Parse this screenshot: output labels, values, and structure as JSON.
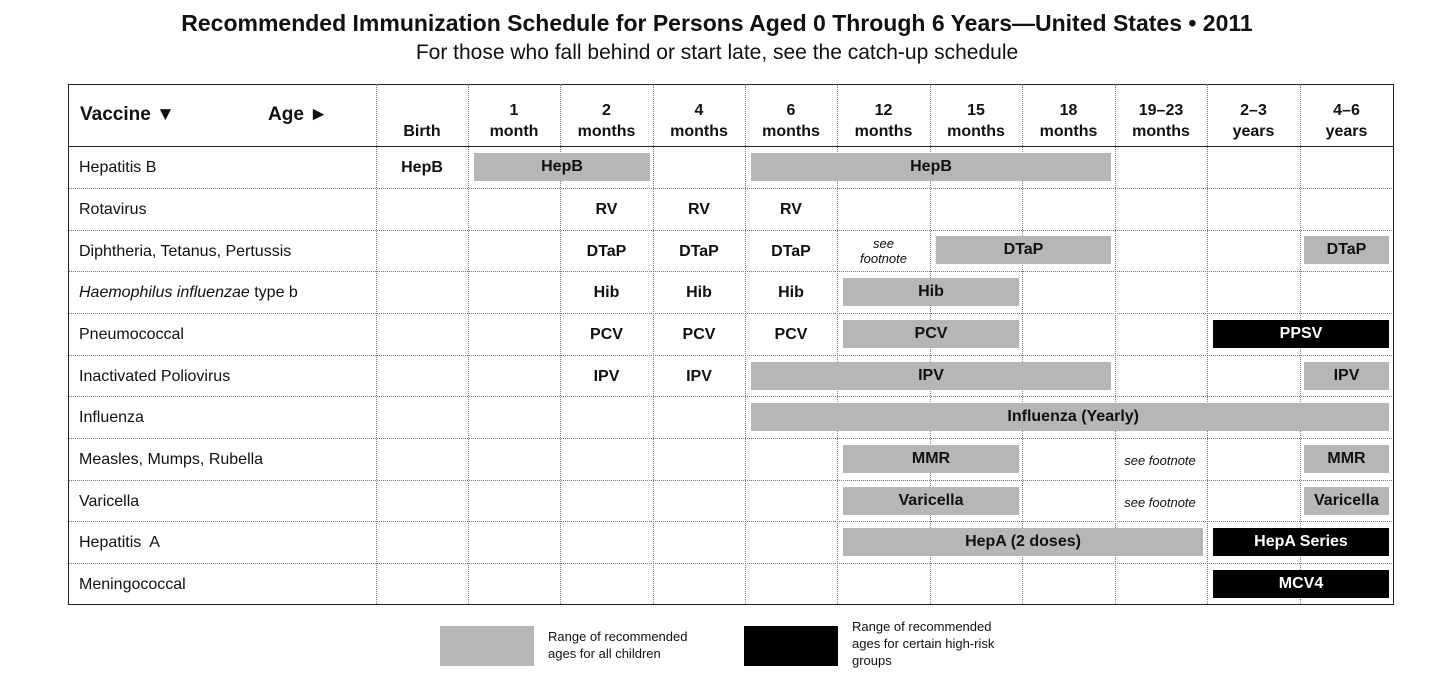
{
  "title": "Recommended Immunization Schedule for Persons Aged 0 Through 6 Years—United States • 2011",
  "subtitle": "For those who fall behind or start late, see the catch-up schedule",
  "header": {
    "vaccine_label": "Vaccine ▼",
    "age_label": "Age ►",
    "ages": [
      "Birth",
      "1\nmonth",
      "2\nmonths",
      "4\nmonths",
      "6\nmonths",
      "12\nmonths",
      "15\nmonths",
      "18\nmonths",
      "19–23\nmonths",
      "2–3\nyears",
      "4–6\nyears"
    ]
  },
  "rows": {
    "hepb": {
      "label": "Hepatitis B",
      "birth": "HepB",
      "bar1": "HepB",
      "bar2": "HepB"
    },
    "rv": {
      "label": "Rotavirus",
      "m2": "RV",
      "m4": "RV",
      "m6": "RV"
    },
    "dtap": {
      "label": "Diphtheria, Tetanus, Pertussis",
      "m2": "DTaP",
      "m4": "DTaP",
      "m6": "DTaP",
      "note": "see\nfootnote",
      "bar": "DTaP",
      "y46": "DTaP"
    },
    "hib": {
      "label_italic": "Haemophilus influenzae",
      "label_rest": " type b",
      "m2": "Hib",
      "m4": "Hib",
      "m6": "Hib",
      "bar": "Hib"
    },
    "pcv": {
      "label": "Pneumococcal",
      "m2": "PCV",
      "m4": "PCV",
      "m6": "PCV",
      "bar": "PCV",
      "ppsv": "PPSV"
    },
    "ipv": {
      "label": "Inactivated Poliovirus",
      "m2": "IPV",
      "m4": "IPV",
      "bar": "IPV",
      "y46": "IPV"
    },
    "flu": {
      "label": "Influenza",
      "bar": "Influenza (Yearly)"
    },
    "mmr": {
      "label": "Measles, Mumps, Rubella",
      "bar": "MMR",
      "note": "see footnote",
      "y46": "MMR"
    },
    "var": {
      "label": "Varicella",
      "bar": "Varicella",
      "note": "see footnote",
      "y46": "Varicella"
    },
    "hepa": {
      "label": "Hepatitis  A",
      "bar": "HepA (2 doses)",
      "series": "HepA Series"
    },
    "mcv": {
      "label": "Meningococcal",
      "bar": "MCV4"
    }
  },
  "legend": {
    "gray_text": "Range of recommended\nages for all children",
    "black_text": "Range of recommended\nages for certain high-risk\ngroups",
    "gray_color": "#b6b6b6",
    "black_color": "#000000"
  }
}
